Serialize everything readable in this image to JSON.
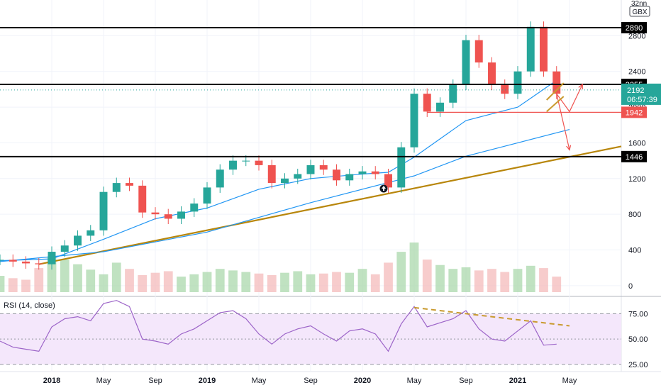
{
  "chart_data": [
    {
      "type": "candlestick",
      "currency": "GBX",
      "y_ticks": [
        0,
        400,
        800,
        1200,
        1600,
        2000,
        2400,
        2800
      ],
      "y_tick_labels": [
        "0",
        "400",
        "800",
        "1200",
        "1600",
        "2000",
        "2400",
        "2800"
      ],
      "top_label": "32nn",
      "ylim": [
        -120,
        3200
      ],
      "x_ticks": [
        "2018",
        "May",
        "Sep",
        "2019",
        "May",
        "Sep",
        "2020",
        "May",
        "Sep",
        "2021",
        "May"
      ],
      "x_tick_dates": [
        "2018-01",
        "2018-05",
        "2018-09",
        "2019-01",
        "2019-05",
        "2019-09",
        "2020-01",
        "2020-05",
        "2020-09",
        "2021-01",
        "2021-05"
      ],
      "x_tick_bold": [
        true,
        false,
        false,
        true,
        false,
        false,
        true,
        false,
        false,
        true,
        false
      ],
      "xlim": [
        "2017-09",
        "2021-09"
      ],
      "close_series": [
        {
          "date": "2017-09",
          "value": 290
        },
        {
          "date": "2017-10",
          "value": 270
        },
        {
          "date": "2017-11",
          "value": 250
        },
        {
          "date": "2017-12",
          "value": 240
        },
        {
          "date": "2018-01",
          "value": 380
        },
        {
          "date": "2018-02",
          "value": 450
        },
        {
          "date": "2018-03",
          "value": 560
        },
        {
          "date": "2018-04",
          "value": 620
        },
        {
          "date": "2018-05",
          "value": 1050
        },
        {
          "date": "2018-06",
          "value": 1150
        },
        {
          "date": "2018-07",
          "value": 1120
        },
        {
          "date": "2018-08",
          "value": 820
        },
        {
          "date": "2018-09",
          "value": 800
        },
        {
          "date": "2018-10",
          "value": 750
        },
        {
          "date": "2018-11",
          "value": 830
        },
        {
          "date": "2018-12",
          "value": 920
        },
        {
          "date": "2019-01",
          "value": 1100
        },
        {
          "date": "2019-02",
          "value": 1300
        },
        {
          "date": "2019-03",
          "value": 1400
        },
        {
          "date": "2019-04",
          "value": 1400
        },
        {
          "date": "2019-05",
          "value": 1350
        },
        {
          "date": "2019-06",
          "value": 1150
        },
        {
          "date": "2019-07",
          "value": 1200
        },
        {
          "date": "2019-08",
          "value": 1250
        },
        {
          "date": "2019-09",
          "value": 1350
        },
        {
          "date": "2019-10",
          "value": 1300
        },
        {
          "date": "2019-11",
          "value": 1180
        },
        {
          "date": "2019-12",
          "value": 1250
        },
        {
          "date": "2020-01",
          "value": 1280
        },
        {
          "date": "2020-02",
          "value": 1250
        },
        {
          "date": "2020-03",
          "value": 1100
        },
        {
          "date": "2020-04",
          "value": 1550
        },
        {
          "date": "2020-05",
          "value": 2150
        },
        {
          "date": "2020-06",
          "value": 1950
        },
        {
          "date": "2020-07",
          "value": 2050
        },
        {
          "date": "2020-08",
          "value": 2250
        },
        {
          "date": "2020-09",
          "value": 2750
        },
        {
          "date": "2020-10",
          "value": 2500
        },
        {
          "date": "2020-11",
          "value": 2250
        },
        {
          "date": "2020-12",
          "value": 2150
        },
        {
          "date": "2021-01",
          "value": 2400
        },
        {
          "date": "2021-02",
          "value": 2900
        },
        {
          "date": "2021-03",
          "value": 2400
        },
        {
          "date": "2021-04",
          "value": 2150
        }
      ],
      "moving_averages": [
        {
          "color": "#2196f3",
          "points": [
            {
              "date": "2017-09",
              "value": 280
            },
            {
              "date": "2018-01",
              "value": 300
            },
            {
              "date": "2018-05",
              "value": 520
            },
            {
              "date": "2018-09",
              "value": 750
            },
            {
              "date": "2019-01",
              "value": 870
            },
            {
              "date": "2019-05",
              "value": 1080
            },
            {
              "date": "2019-09",
              "value": 1200
            },
            {
              "date": "2020-01",
              "value": 1250
            },
            {
              "date": "2020-03",
              "value": 1270
            },
            {
              "date": "2020-05",
              "value": 1440
            },
            {
              "date": "2020-09",
              "value": 1850
            },
            {
              "date": "2021-01",
              "value": 2000
            },
            {
              "date": "2021-04",
              "value": 2300
            }
          ]
        },
        {
          "color": "#2196f3",
          "points": [
            {
              "date": "2017-09",
              "value": 270
            },
            {
              "date": "2018-05",
              "value": 380
            },
            {
              "date": "2019-01",
              "value": 600
            },
            {
              "date": "2019-09",
              "value": 930
            },
            {
              "date": "2020-05",
              "value": 1230
            },
            {
              "date": "2020-09",
              "value": 1450
            },
            {
              "date": "2021-01",
              "value": 1600
            },
            {
              "date": "2021-05",
              "value": 1750
            }
          ]
        }
      ],
      "horizontal_levels": [
        {
          "value": 2890,
          "label": "2890",
          "color": "#000000"
        },
        {
          "value": 2255,
          "label": "2255",
          "color": "#000000"
        },
        {
          "value": 1446,
          "label": "1446",
          "color": "#000000"
        }
      ],
      "support_line": {
        "color": "#b8860b",
        "start": {
          "date": "2017-12",
          "value": 240
        },
        "end": {
          "date": "2021-09",
          "value": 1560
        }
      },
      "price_marker": {
        "value": 2192,
        "label": "2192",
        "timer": "06:57:39",
        "color": "#26a69a"
      },
      "red_level": {
        "value": 1942,
        "label": "1942",
        "color": "#ef5350",
        "from": "2020-06"
      },
      "projection_arrows": [
        {
          "color": "#ef5350",
          "points": [
            {
              "date": "2021-04",
              "value": 2150
            },
            {
              "date": "2021-05",
              "value": 1950
            },
            {
              "date": "2021-06",
              "value": 2255
            }
          ]
        },
        {
          "color": "#ef5350",
          "points": [
            {
              "date": "2021-04",
              "value": 2150
            },
            {
              "date": "2021-05",
              "value": 1520
            }
          ]
        }
      ],
      "volume": [
        210,
        180,
        160,
        310,
        460,
        420,
        360,
        290,
        230,
        380,
        300,
        220,
        250,
        270,
        200,
        230,
        260,
        300,
        280,
        260,
        240,
        220,
        250,
        270,
        230,
        240,
        260,
        250,
        300,
        230,
        380,
        520,
        640,
        420,
        350,
        300,
        320,
        280,
        300,
        260,
        300,
        340,
        310,
        200
      ]
    },
    {
      "type": "line",
      "title": "RSI (14, close)",
      "y_ticks": [
        25,
        50,
        75
      ],
      "y_tick_labels": [
        "25.00",
        "50.00",
        "75.00"
      ],
      "ylim": [
        18,
        92
      ],
      "band": [
        25,
        75
      ],
      "xlim": [
        "2017-09",
        "2021-09"
      ],
      "series": [
        {
          "date": "2017-09",
          "value": 48
        },
        {
          "date": "2017-10",
          "value": 42
        },
        {
          "date": "2017-11",
          "value": 40
        },
        {
          "date": "2017-12",
          "value": 38
        },
        {
          "date": "2018-01",
          "value": 62
        },
        {
          "date": "2018-02",
          "value": 70
        },
        {
          "date": "2018-03",
          "value": 72
        },
        {
          "date": "2018-04",
          "value": 68
        },
        {
          "date": "2018-05",
          "value": 85
        },
        {
          "date": "2018-06",
          "value": 88
        },
        {
          "date": "2018-07",
          "value": 82
        },
        {
          "date": "2018-08",
          "value": 50
        },
        {
          "date": "2018-09",
          "value": 48
        },
        {
          "date": "2018-10",
          "value": 45
        },
        {
          "date": "2018-11",
          "value": 55
        },
        {
          "date": "2018-12",
          "value": 60
        },
        {
          "date": "2019-01",
          "value": 68
        },
        {
          "date": "2019-02",
          "value": 76
        },
        {
          "date": "2019-03",
          "value": 78
        },
        {
          "date": "2019-04",
          "value": 70
        },
        {
          "date": "2019-05",
          "value": 55
        },
        {
          "date": "2019-06",
          "value": 45
        },
        {
          "date": "2019-07",
          "value": 55
        },
        {
          "date": "2019-08",
          "value": 60
        },
        {
          "date": "2019-09",
          "value": 63
        },
        {
          "date": "2019-10",
          "value": 55
        },
        {
          "date": "2019-11",
          "value": 48
        },
        {
          "date": "2019-12",
          "value": 58
        },
        {
          "date": "2020-01",
          "value": 60
        },
        {
          "date": "2020-02",
          "value": 55
        },
        {
          "date": "2020-03",
          "value": 38
        },
        {
          "date": "2020-04",
          "value": 65
        },
        {
          "date": "2020-05",
          "value": 82
        },
        {
          "date": "2020-06",
          "value": 62
        },
        {
          "date": "2020-07",
          "value": 66
        },
        {
          "date": "2020-08",
          "value": 70
        },
        {
          "date": "2020-09",
          "value": 78
        },
        {
          "date": "2020-10",
          "value": 60
        },
        {
          "date": "2020-11",
          "value": 50
        },
        {
          "date": "2020-12",
          "value": 48
        },
        {
          "date": "2021-01",
          "value": 58
        },
        {
          "date": "2021-02",
          "value": 68
        },
        {
          "date": "2021-03",
          "value": 44
        },
        {
          "date": "2021-04",
          "value": 45
        }
      ],
      "trendline": {
        "color": "#c99a2e",
        "start": {
          "date": "2020-05",
          "value": 81
        },
        "end": {
          "date": "2021-05",
          "value": 63
        }
      },
      "line_color": "#9c64c8",
      "band_color": "#f4e7fb"
    }
  ]
}
